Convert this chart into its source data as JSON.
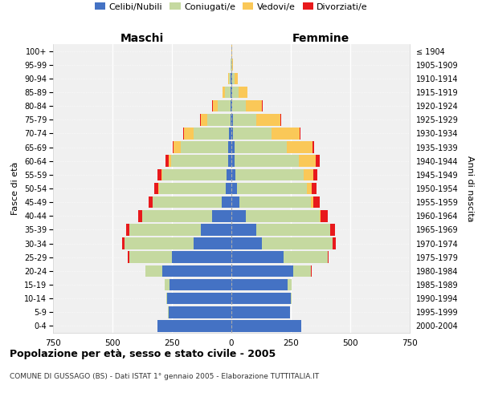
{
  "age_groups": [
    "0-4",
    "5-9",
    "10-14",
    "15-19",
    "20-24",
    "25-29",
    "30-34",
    "35-39",
    "40-44",
    "45-49",
    "50-54",
    "55-59",
    "60-64",
    "65-69",
    "70-74",
    "75-79",
    "80-84",
    "85-89",
    "90-94",
    "95-99",
    "100+"
  ],
  "birth_years": [
    "2000-2004",
    "1995-1999",
    "1990-1994",
    "1985-1989",
    "1980-1984",
    "1975-1979",
    "1970-1974",
    "1965-1969",
    "1960-1964",
    "1955-1959",
    "1950-1954",
    "1945-1949",
    "1940-1944",
    "1935-1939",
    "1930-1934",
    "1925-1929",
    "1920-1924",
    "1915-1919",
    "1910-1914",
    "1905-1909",
    "≤ 1904"
  ],
  "male_celibi": [
    310,
    265,
    270,
    260,
    290,
    250,
    160,
    130,
    80,
    40,
    25,
    20,
    15,
    12,
    10,
    5,
    4,
    3,
    2,
    1,
    0
  ],
  "male_coniugati": [
    0,
    2,
    5,
    20,
    70,
    180,
    290,
    300,
    295,
    290,
    280,
    270,
    240,
    200,
    150,
    95,
    55,
    25,
    8,
    3,
    1
  ],
  "male_vedovi": [
    0,
    0,
    0,
    0,
    0,
    0,
    0,
    0,
    1,
    2,
    3,
    5,
    10,
    30,
    40,
    30,
    20,
    8,
    3,
    1,
    0
  ],
  "male_divorziati": [
    0,
    0,
    0,
    0,
    2,
    5,
    8,
    12,
    15,
    15,
    15,
    15,
    12,
    5,
    3,
    2,
    1,
    0,
    0,
    0,
    0
  ],
  "female_celibi": [
    295,
    245,
    250,
    235,
    260,
    220,
    130,
    105,
    60,
    35,
    22,
    18,
    15,
    12,
    8,
    6,
    5,
    4,
    2,
    1,
    0
  ],
  "female_coniugati": [
    0,
    2,
    5,
    20,
    75,
    185,
    295,
    310,
    310,
    300,
    295,
    285,
    270,
    220,
    160,
    100,
    55,
    28,
    10,
    3,
    1
  ],
  "female_vedovi": [
    0,
    0,
    0,
    0,
    0,
    0,
    1,
    2,
    5,
    10,
    20,
    40,
    70,
    110,
    120,
    100,
    70,
    35,
    15,
    4,
    1
  ],
  "female_divorziati": [
    0,
    0,
    0,
    0,
    2,
    5,
    12,
    20,
    30,
    25,
    20,
    20,
    18,
    6,
    4,
    3,
    2,
    1,
    0,
    0,
    0
  ],
  "colors": {
    "celibi": "#4472c4",
    "coniugati": "#c5d9a0",
    "vedovi": "#fac858",
    "divorziati": "#e8191c"
  },
  "xlim": 750,
  "title": "Popolazione per età, sesso e stato civile - 2005",
  "subtitle": "COMUNE DI GUSSAGO (BS) - Dati ISTAT 1° gennaio 2005 - Elaborazione TUTTITALIA.IT",
  "ylabel_left": "Fasce di età",
  "ylabel_right": "Anni di nascita",
  "bg_color": "#ffffff",
  "plot_bg": "#f0f0f0"
}
